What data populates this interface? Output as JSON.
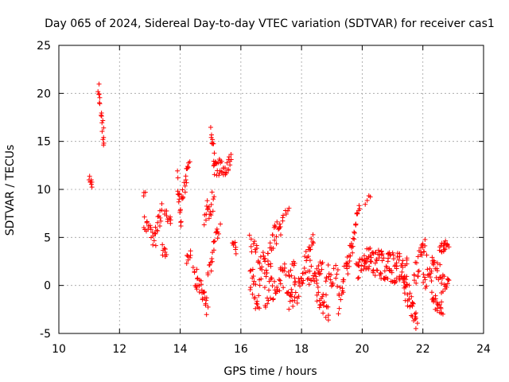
{
  "chart_data": {
    "type": "scatter",
    "title": "Day 065 of 2024, Sidereal Day-to-day VTEC variation (SDTVAR) for receiver cas1",
    "xlabel": "GPS time / hours",
    "ylabel": "SDTVAR / TECUs",
    "xlim": [
      10,
      24
    ],
    "ylim": [
      -5,
      25
    ],
    "xticks": [
      10,
      12,
      14,
      16,
      18,
      20,
      22,
      24
    ],
    "yticks": [
      -5,
      0,
      5,
      10,
      15,
      20,
      25
    ],
    "grid": true,
    "marker": "+",
    "series": [
      {
        "name": "SDTVAR",
        "color": "#ff0000",
        "clusters": [
          {
            "x0": 11.0,
            "x1": 11.1,
            "y0": 11.0,
            "y1": 10.5,
            "n": 8,
            "amp": 0.5
          },
          {
            "x0": 11.3,
            "x1": 11.5,
            "y0": 20.3,
            "y1": 14.5,
            "n": 18,
            "amp": 0.8
          },
          {
            "x0": 12.8,
            "x1": 12.85,
            "y0": 9.5,
            "y1": 9.5,
            "n": 3,
            "amp": 0.2
          },
          {
            "x0": 12.8,
            "x1": 13.2,
            "y0": 6.5,
            "y1": 4.5,
            "n": 20,
            "amp": 0.8
          },
          {
            "x0": 13.2,
            "x1": 13.4,
            "y0": 5.5,
            "y1": 8.0,
            "n": 12,
            "amp": 0.8
          },
          {
            "x0": 13.4,
            "x1": 13.55,
            "y0": 4.0,
            "y1": 3.0,
            "n": 8,
            "amp": 0.6
          },
          {
            "x0": 13.5,
            "x1": 13.7,
            "y0": 7.5,
            "y1": 6.5,
            "n": 10,
            "amp": 0.6
          },
          {
            "x0": 13.9,
            "x1": 14.05,
            "y0": 11.0,
            "y1": 6.5,
            "n": 14,
            "amp": 1.0
          },
          {
            "x0": 14.05,
            "x1": 14.3,
            "y0": 9.0,
            "y1": 12.8,
            "n": 18,
            "amp": 1.0
          },
          {
            "x0": 14.2,
            "x1": 14.35,
            "y0": 2.5,
            "y1": 3.5,
            "n": 8,
            "amp": 0.5
          },
          {
            "x0": 14.45,
            "x1": 14.9,
            "y0": 1.5,
            "y1": -2.5,
            "n": 30,
            "amp": 1.2
          },
          {
            "x0": 14.8,
            "x1": 15.1,
            "y0": 7.0,
            "y1": 9.0,
            "n": 18,
            "amp": 1.2
          },
          {
            "x0": 15.0,
            "x1": 15.15,
            "y0": 15.8,
            "y1": 13.0,
            "n": 12,
            "amp": 1.0
          },
          {
            "x0": 15.1,
            "x1": 15.4,
            "y0": 12.0,
            "y1": 12.5,
            "n": 18,
            "amp": 0.8
          },
          {
            "x0": 14.9,
            "x1": 15.3,
            "y0": 1.0,
            "y1": 6.5,
            "n": 20,
            "amp": 1.0
          },
          {
            "x0": 15.4,
            "x1": 15.7,
            "y0": 11.5,
            "y1": 13.5,
            "n": 16,
            "amp": 1.0
          },
          {
            "x0": 15.7,
            "x1": 15.85,
            "y0": 4.5,
            "y1": 3.5,
            "n": 8,
            "amp": 0.6
          },
          {
            "x0": 16.3,
            "x1": 16.6,
            "y0": 1.0,
            "y1": -2.0,
            "n": 20,
            "amp": 1.5
          },
          {
            "x0": 16.3,
            "x1": 16.6,
            "y0": 5.0,
            "y1": 3.0,
            "n": 12,
            "amp": 1.0
          },
          {
            "x0": 16.6,
            "x1": 17.0,
            "y0": 1.0,
            "y1": 3.5,
            "n": 26,
            "amp": 1.8
          },
          {
            "x0": 16.8,
            "x1": 17.3,
            "y0": -1.5,
            "y1": 1.0,
            "n": 26,
            "amp": 1.4
          },
          {
            "x0": 17.0,
            "x1": 17.4,
            "y0": 4.5,
            "y1": 6.5,
            "n": 20,
            "amp": 1.2
          },
          {
            "x0": 17.3,
            "x1": 17.8,
            "y0": 0.5,
            "y1": 1.0,
            "n": 26,
            "amp": 1.6
          },
          {
            "x0": 17.45,
            "x1": 17.6,
            "y0": 7.5,
            "y1": 7.8,
            "n": 4,
            "amp": 0.3
          },
          {
            "x0": 17.6,
            "x1": 18.0,
            "y0": -2.0,
            "y1": 0.0,
            "n": 22,
            "amp": 1.4
          },
          {
            "x0": 18.0,
            "x1": 18.4,
            "y0": 1.0,
            "y1": 4.5,
            "n": 22,
            "amp": 1.2
          },
          {
            "x0": 18.2,
            "x1": 18.7,
            "y0": 1.0,
            "y1": 1.5,
            "n": 26,
            "amp": 1.2
          },
          {
            "x0": 18.5,
            "x1": 18.9,
            "y0": -1.0,
            "y1": -2.5,
            "n": 22,
            "amp": 1.2
          },
          {
            "x0": 18.8,
            "x1": 19.2,
            "y0": 1.0,
            "y1": 1.0,
            "n": 18,
            "amp": 1.2
          },
          {
            "x0": 19.2,
            "x1": 19.5,
            "y0": -2.0,
            "y1": 2.5,
            "n": 18,
            "amp": 1.2
          },
          {
            "x0": 19.5,
            "x1": 19.9,
            "y0": 1.5,
            "y1": 8.0,
            "n": 26,
            "amp": 1.0
          },
          {
            "x0": 19.8,
            "x1": 20.1,
            "y0": 1.5,
            "y1": 2.5,
            "n": 18,
            "amp": 1.0
          },
          {
            "x0": 20.1,
            "x1": 20.25,
            "y0": 8.5,
            "y1": 9.5,
            "n": 4,
            "amp": 0.3
          },
          {
            "x0": 20.1,
            "x1": 20.9,
            "y0": 2.5,
            "y1": 2.0,
            "n": 60,
            "amp": 1.5
          },
          {
            "x0": 20.9,
            "x1": 21.5,
            "y0": 2.0,
            "y1": 1.5,
            "n": 50,
            "amp": 1.6
          },
          {
            "x0": 21.4,
            "x1": 21.8,
            "y0": 0.0,
            "y1": -3.5,
            "n": 30,
            "amp": 1.6
          },
          {
            "x0": 21.7,
            "x1": 22.1,
            "y0": 1.0,
            "y1": 4.0,
            "n": 24,
            "amp": 1.2
          },
          {
            "x0": 22.0,
            "x1": 22.3,
            "y0": 0.5,
            "y1": 1.0,
            "n": 16,
            "amp": 1.0
          },
          {
            "x0": 22.3,
            "x1": 22.65,
            "y0": -1.5,
            "y1": -2.0,
            "n": 22,
            "amp": 1.0
          },
          {
            "x0": 22.3,
            "x1": 22.6,
            "y0": 2.5,
            "y1": 1.0,
            "n": 16,
            "amp": 1.0
          },
          {
            "x0": 22.55,
            "x1": 22.85,
            "y0": 3.5,
            "y1": 4.0,
            "n": 18,
            "amp": 0.8
          },
          {
            "x0": 22.6,
            "x1": 22.85,
            "y0": 0.0,
            "y1": 1.0,
            "n": 14,
            "amp": 1.0
          }
        ]
      }
    ]
  }
}
